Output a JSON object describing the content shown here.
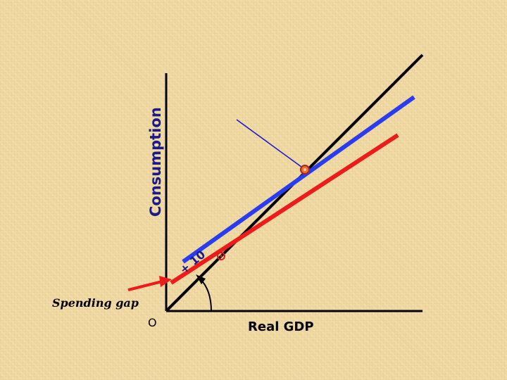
{
  "diagram": {
    "y_axis_label": "Consumption",
    "x_axis_label": "Real GDP",
    "origin_label": "O",
    "shift_label": "+ 10",
    "gap_label": "Spending gap",
    "colors": {
      "axis": "#000000",
      "line_45": "#000000",
      "line_high": "#2a3cf0",
      "line_low": "#ee1b1b",
      "pointer": "#1a1acc",
      "gap_label": "#000000",
      "y_label": "#1a1a8c"
    }
  }
}
